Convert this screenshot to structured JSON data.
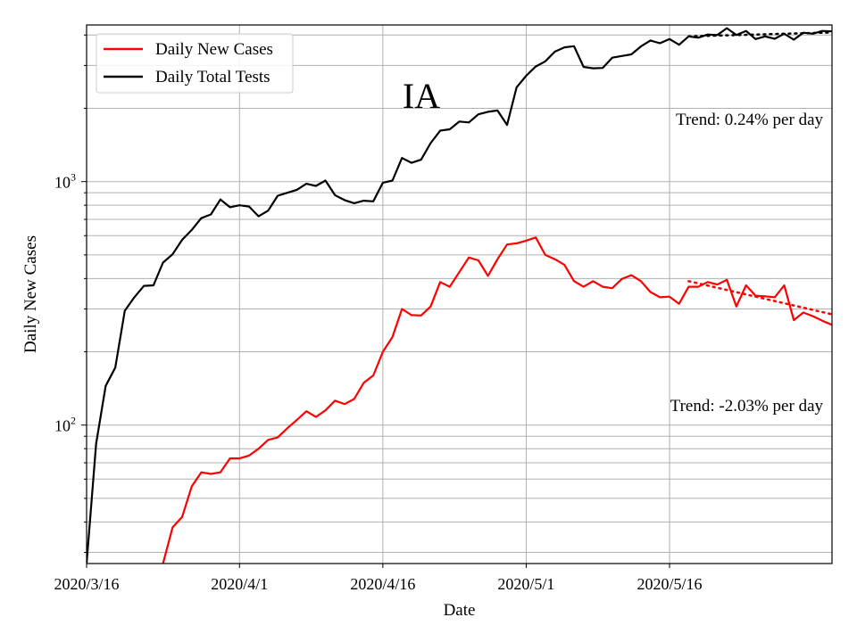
{
  "chart_data": {
    "type": "line",
    "title": "IA",
    "xlabel": "Date",
    "ylabel": "Daily New Cases",
    "y_scale": "log",
    "ylim": [
      27,
      4400
    ],
    "xlim": [
      "2020-03-16",
      "2020-06-02"
    ],
    "grid": true,
    "legend_position": "top-left",
    "x_ticks": [
      {
        "date": "2020-03-16",
        "label": "2020/3/16"
      },
      {
        "date": "2020-04-01",
        "label": "2020/4/1"
      },
      {
        "date": "2020-04-16",
        "label": "2020/4/16"
      },
      {
        "date": "2020-05-01",
        "label": "2020/5/1"
      },
      {
        "date": "2020-05-16",
        "label": "2020/5/16"
      }
    ],
    "y_ticks": [
      {
        "value": 100,
        "base": "10",
        "exp": "2"
      },
      {
        "value": 1000,
        "base": "10",
        "exp": "3"
      }
    ],
    "series": [
      {
        "name": "Daily New Cases",
        "color": "#ff0000",
        "x": [
          "2020-03-24",
          "2020-03-25",
          "2020-03-26",
          "2020-03-27",
          "2020-03-28",
          "2020-03-29",
          "2020-03-30",
          "2020-03-31",
          "2020-04-01",
          "2020-04-02",
          "2020-04-03",
          "2020-04-04",
          "2020-04-05",
          "2020-04-06",
          "2020-04-07",
          "2020-04-08",
          "2020-04-09",
          "2020-04-10",
          "2020-04-11",
          "2020-04-12",
          "2020-04-13",
          "2020-04-14",
          "2020-04-15",
          "2020-04-16",
          "2020-04-17",
          "2020-04-18",
          "2020-04-19",
          "2020-04-20",
          "2020-04-21",
          "2020-04-22",
          "2020-04-23",
          "2020-04-24",
          "2020-04-25",
          "2020-04-26",
          "2020-04-27",
          "2020-04-28",
          "2020-04-29",
          "2020-04-30",
          "2020-05-01",
          "2020-05-02",
          "2020-05-03",
          "2020-05-04",
          "2020-05-05",
          "2020-05-06",
          "2020-05-07",
          "2020-05-08",
          "2020-05-09",
          "2020-05-10",
          "2020-05-11",
          "2020-05-12",
          "2020-05-13",
          "2020-05-14",
          "2020-05-15",
          "2020-05-16",
          "2020-05-17",
          "2020-05-18",
          "2020-05-19",
          "2020-05-20",
          "2020-05-21",
          "2020-05-22",
          "2020-05-23",
          "2020-05-24",
          "2020-05-25",
          "2020-05-26",
          "2020-05-27",
          "2020-05-28",
          "2020-05-29",
          "2020-05-30",
          "2020-05-31",
          "2020-06-01",
          "2020-06-02"
        ],
        "values": [
          27,
          38,
          42,
          56,
          64,
          63,
          64,
          73,
          73,
          75,
          80,
          87,
          89,
          97,
          105,
          114,
          108,
          115,
          126,
          122,
          128,
          149,
          160,
          200,
          230,
          300,
          283,
          282,
          307,
          387,
          370,
          425,
          488,
          475,
          410,
          480,
          552,
          558,
          572,
          590,
          500,
          480,
          455,
          390,
          370,
          390,
          370,
          365,
          398,
          413,
          390,
          352,
          335,
          337,
          315,
          370,
          370,
          387,
          378,
          395,
          307,
          375,
          340,
          338,
          335,
          375,
          270,
          290,
          280,
          268,
          258
        ]
      },
      {
        "name": "Daily Total Tests",
        "color": "#000000",
        "x": [
          "2020-03-16",
          "2020-03-17",
          "2020-03-18",
          "2020-03-19",
          "2020-03-20",
          "2020-03-21",
          "2020-03-22",
          "2020-03-23",
          "2020-03-24",
          "2020-03-25",
          "2020-03-26",
          "2020-03-27",
          "2020-03-28",
          "2020-03-29",
          "2020-03-30",
          "2020-03-31",
          "2020-04-01",
          "2020-04-02",
          "2020-04-03",
          "2020-04-04",
          "2020-04-05",
          "2020-04-06",
          "2020-04-07",
          "2020-04-08",
          "2020-04-09",
          "2020-04-10",
          "2020-04-11",
          "2020-04-12",
          "2020-04-13",
          "2020-04-14",
          "2020-04-15",
          "2020-04-16",
          "2020-04-17",
          "2020-04-18",
          "2020-04-19",
          "2020-04-20",
          "2020-04-21",
          "2020-04-22",
          "2020-04-23",
          "2020-04-24",
          "2020-04-25",
          "2020-04-26",
          "2020-04-27",
          "2020-04-28",
          "2020-04-29",
          "2020-04-30",
          "2020-05-01",
          "2020-05-02",
          "2020-05-03",
          "2020-05-04",
          "2020-05-05",
          "2020-05-06",
          "2020-05-07",
          "2020-05-08",
          "2020-05-09",
          "2020-05-10",
          "2020-05-11",
          "2020-05-12",
          "2020-05-13",
          "2020-05-14",
          "2020-05-15",
          "2020-05-16",
          "2020-05-17",
          "2020-05-18",
          "2020-05-19",
          "2020-05-20",
          "2020-05-21",
          "2020-05-22",
          "2020-05-23",
          "2020-05-24",
          "2020-05-25",
          "2020-05-26",
          "2020-05-27",
          "2020-05-28",
          "2020-05-29",
          "2020-05-30",
          "2020-05-31",
          "2020-06-01",
          "2020-06-02"
        ],
        "values": [
          27,
          84,
          145,
          172,
          295,
          335,
          373,
          375,
          465,
          503,
          577,
          633,
          708,
          733,
          845,
          785,
          800,
          790,
          720,
          760,
          875,
          900,
          925,
          980,
          960,
          1010,
          880,
          840,
          815,
          835,
          830,
          990,
          1010,
          1250,
          1195,
          1230,
          1440,
          1620,
          1640,
          1765,
          1750,
          1890,
          1935,
          1960,
          1710,
          2440,
          2720,
          2970,
          3120,
          3420,
          3560,
          3600,
          2960,
          2920,
          2930,
          3230,
          3280,
          3330,
          3590,
          3800,
          3700,
          3850,
          3650,
          3950,
          3900,
          4020,
          4000,
          4270,
          4000,
          4160,
          3850,
          3950,
          3860,
          4050,
          3830,
          4090,
          4050,
          4160,
          4140
        ]
      }
    ],
    "trend_lines": [
      {
        "series": "Daily Total Tests",
        "color": "#000000",
        "style": "dotted",
        "x": [
          "2020-05-18",
          "2020-06-02"
        ],
        "values": [
          3950,
          4100
        ]
      },
      {
        "series": "Daily New Cases",
        "color": "#ff0000",
        "style": "dotted",
        "x": [
          "2020-05-18",
          "2020-06-02"
        ],
        "values": [
          390,
          285
        ]
      }
    ],
    "annotations": [
      {
        "text": "Trend: 0.24% per day",
        "anchor_date": "2020-06-02",
        "anchor_value": 1800,
        "align": "end"
      },
      {
        "text": "Trend: -2.03% per day",
        "anchor_date": "2020-06-02",
        "anchor_value": 120,
        "align": "end"
      }
    ]
  }
}
